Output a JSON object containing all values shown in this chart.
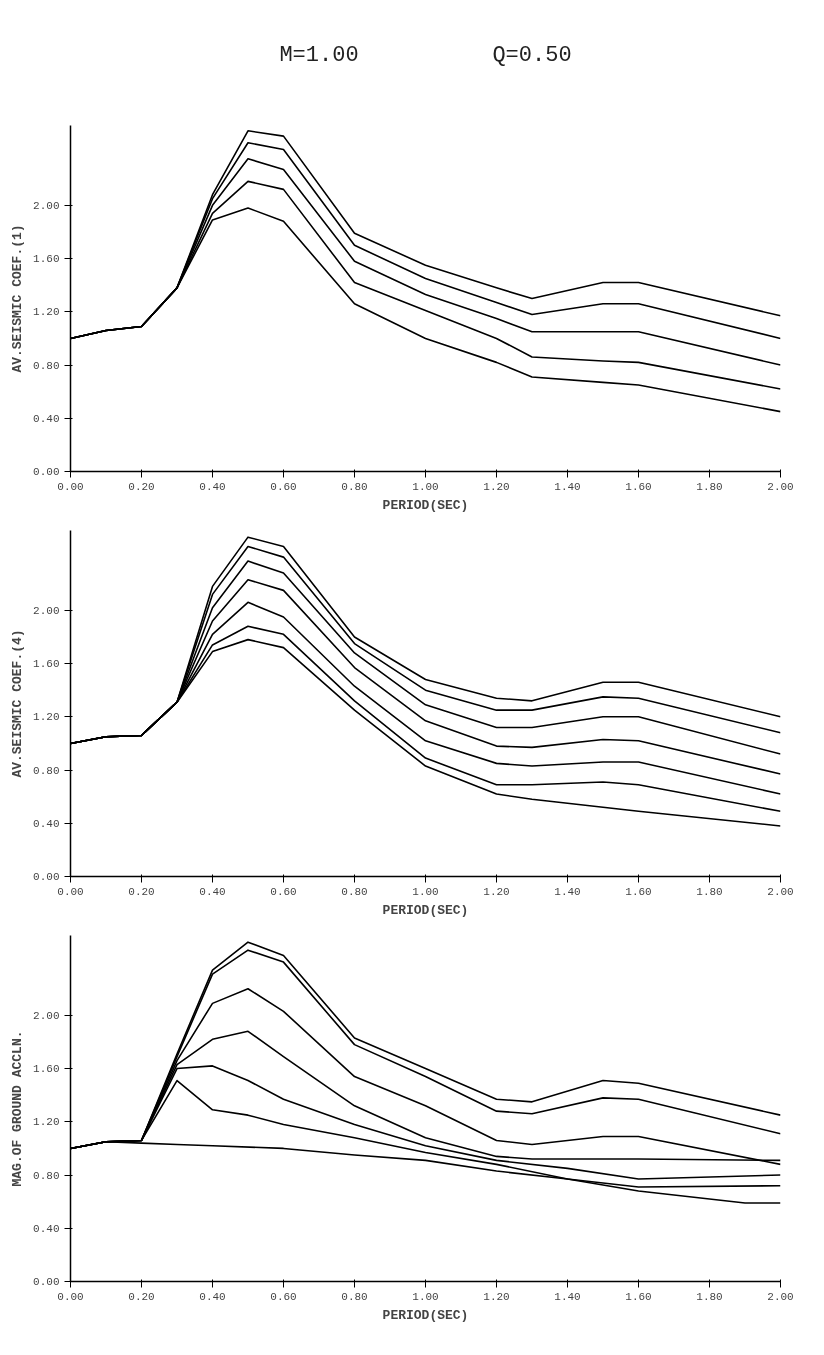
{
  "chart_data": [
    {
      "type": "other",
      "annotations": [
        "M=1.00",
        "Q=0.50"
      ]
    },
    {
      "type": "line",
      "xlabel": "PERIOD(SEC)",
      "ylabel": "AV.SEISMIC COEF.(1)",
      "xlim": [
        0,
        2.0
      ],
      "ylim": [
        0,
        2.6
      ],
      "xticks": [
        {
          "value": 0,
          "label": "0.00"
        },
        {
          "value": 0.2,
          "label": "0.20"
        },
        {
          "value": 0.4,
          "label": "0.40"
        },
        {
          "value": 0.6,
          "label": "0.60"
        },
        {
          "value": 0.8,
          "label": "0.80"
        },
        {
          "value": 1.0,
          "label": "1.00"
        },
        {
          "value": 1.2,
          "label": "1.20"
        },
        {
          "value": 1.4,
          "label": "1.40"
        },
        {
          "value": 1.6,
          "label": "1.60"
        },
        {
          "value": 1.8,
          "label": "1.80"
        },
        {
          "value": 2.0,
          "label": "2.00"
        }
      ],
      "yticks": [
        {
          "value": 0,
          "label": "0.00"
        },
        {
          "value": 0.4,
          "label": "0.40"
        },
        {
          "value": 0.8,
          "label": "0.80"
        },
        {
          "value": 1.2,
          "label": "1.20"
        },
        {
          "value": 1.6,
          "label": "1.60"
        },
        {
          "value": 2.0,
          "label": "2.00"
        }
      ],
      "grid": false,
      "line_style": "solid",
      "x": [
        0,
        0.1,
        0.2,
        0.3,
        0.4,
        0.5,
        0.6,
        0.8,
        1.0,
        1.2,
        1.3,
        1.5,
        1.6,
        2.0
      ],
      "series": [
        {
          "color": "#000000",
          "values": [
            1.0,
            1.06,
            1.09,
            1.38,
            2.08,
            2.56,
            2.52,
            1.79,
            1.55,
            1.38,
            1.3,
            1.42,
            1.42,
            1.17
          ]
        },
        {
          "color": "#000000",
          "values": [
            1.0,
            1.06,
            1.09,
            1.38,
            2.05,
            2.47,
            2.42,
            1.7,
            1.45,
            1.27,
            1.18,
            1.26,
            1.26,
            1.0
          ]
        },
        {
          "color": "#000000",
          "values": [
            1.0,
            1.06,
            1.09,
            1.38,
            2.0,
            2.35,
            2.27,
            1.58,
            1.33,
            1.15,
            1.05,
            1.05,
            1.05,
            0.8
          ]
        },
        {
          "color": "#000000",
          "values": [
            1.0,
            1.06,
            1.09,
            1.38,
            1.94,
            2.18,
            2.12,
            1.42,
            1.21,
            1.0,
            0.86,
            0.83,
            0.82,
            0.62
          ]
        },
        {
          "color": "#000000",
          "values": [
            1.0,
            1.06,
            1.09,
            1.38,
            1.89,
            1.98,
            1.88,
            1.26,
            1.0,
            0.82,
            0.71,
            0.67,
            0.65,
            0.45
          ]
        }
      ]
    },
    {
      "type": "line",
      "xlabel": "PERIOD(SEC)",
      "ylabel": "AV.SEISMIC COEF.(4)",
      "xlim": [
        0,
        2.0
      ],
      "ylim": [
        0,
        2.6
      ],
      "xticks": [
        {
          "value": 0,
          "label": "0.00"
        },
        {
          "value": 0.2,
          "label": "0.20"
        },
        {
          "value": 0.4,
          "label": "0.40"
        },
        {
          "value": 0.6,
          "label": "0.60"
        },
        {
          "value": 0.8,
          "label": "0.80"
        },
        {
          "value": 1.0,
          "label": "1.00"
        },
        {
          "value": 1.2,
          "label": "1.20"
        },
        {
          "value": 1.4,
          "label": "1.40"
        },
        {
          "value": 1.6,
          "label": "1.60"
        },
        {
          "value": 1.8,
          "label": "1.80"
        },
        {
          "value": 2.0,
          "label": "2.00"
        }
      ],
      "yticks": [
        {
          "value": 0,
          "label": "0.00"
        },
        {
          "value": 0.4,
          "label": "0.40"
        },
        {
          "value": 0.8,
          "label": "0.80"
        },
        {
          "value": 1.2,
          "label": "1.20"
        },
        {
          "value": 1.6,
          "label": "1.60"
        },
        {
          "value": 2.0,
          "label": "2.00"
        }
      ],
      "grid": false,
      "line_style": "solid",
      "x": [
        0,
        0.1,
        0.2,
        0.3,
        0.4,
        0.5,
        0.6,
        0.8,
        1.0,
        1.2,
        1.3,
        1.5,
        1.6,
        2.0
      ],
      "series": [
        {
          "color": "#000000",
          "values": [
            1.0,
            1.05,
            1.06,
            1.31,
            2.18,
            2.55,
            2.48,
            1.8,
            1.48,
            1.34,
            1.32,
            1.46,
            1.46,
            1.2
          ]
        },
        {
          "color": "#000000",
          "values": [
            1.0,
            1.05,
            1.06,
            1.31,
            2.12,
            2.48,
            2.4,
            1.75,
            1.4,
            1.25,
            1.25,
            1.35,
            1.34,
            1.08
          ]
        },
        {
          "color": "#000000",
          "values": [
            1.0,
            1.05,
            1.06,
            1.31,
            2.02,
            2.37,
            2.28,
            1.68,
            1.29,
            1.12,
            1.12,
            1.2,
            1.2,
            0.92
          ]
        },
        {
          "color": "#000000",
          "values": [
            1.0,
            1.05,
            1.06,
            1.31,
            1.92,
            2.23,
            2.15,
            1.57,
            1.17,
            0.98,
            0.97,
            1.03,
            1.02,
            0.77
          ]
        },
        {
          "color": "#000000",
          "values": [
            1.0,
            1.05,
            1.06,
            1.31,
            1.82,
            2.06,
            1.95,
            1.43,
            1.02,
            0.85,
            0.83,
            0.86,
            0.86,
            0.62
          ]
        },
        {
          "color": "#000000",
          "values": [
            1.0,
            1.05,
            1.06,
            1.31,
            1.74,
            1.88,
            1.82,
            1.32,
            0.89,
            0.69,
            0.69,
            0.71,
            0.69,
            0.49
          ]
        },
        {
          "color": "#000000",
          "values": [
            1.0,
            1.05,
            1.06,
            1.31,
            1.69,
            1.78,
            1.72,
            1.25,
            0.83,
            0.62,
            0.58,
            0.52,
            0.49,
            0.38
          ]
        }
      ]
    },
    {
      "type": "line",
      "xlabel": "PERIOD(SEC)",
      "ylabel": "MAG.OF GROUND ACCLN.",
      "xlim": [
        0,
        2.0
      ],
      "ylim": [
        0,
        2.6
      ],
      "xticks": [
        {
          "value": 0,
          "label": "0.00"
        },
        {
          "value": 0.2,
          "label": "0.20"
        },
        {
          "value": 0.4,
          "label": "0.40"
        },
        {
          "value": 0.6,
          "label": "0.60"
        },
        {
          "value": 0.8,
          "label": "0.80"
        },
        {
          "value": 1.0,
          "label": "1.00"
        },
        {
          "value": 1.2,
          "label": "1.20"
        },
        {
          "value": 1.4,
          "label": "1.40"
        },
        {
          "value": 1.6,
          "label": "1.60"
        },
        {
          "value": 1.8,
          "label": "1.80"
        },
        {
          "value": 2.0,
          "label": "2.00"
        }
      ],
      "yticks": [
        {
          "value": 0,
          "label": "0.00"
        },
        {
          "value": 0.4,
          "label": "0.40"
        },
        {
          "value": 0.8,
          "label": "0.80"
        },
        {
          "value": 1.2,
          "label": "1.20"
        },
        {
          "value": 1.6,
          "label": "1.60"
        },
        {
          "value": 2.0,
          "label": "2.00"
        }
      ],
      "grid": false,
      "line_style": "solid",
      "series": [
        {
          "color": "#000000",
          "x": [
            0,
            0.1,
            0.2,
            0.3,
            0.4,
            0.5,
            0.6,
            0.8,
            1.0,
            1.2,
            1.3,
            1.5,
            1.6,
            2.0
          ],
          "values": [
            1.0,
            1.05,
            1.06,
            1.71,
            2.34,
            2.55,
            2.45,
            1.83,
            1.6,
            1.37,
            1.35,
            1.51,
            1.49,
            1.25
          ]
        },
        {
          "color": "#000000",
          "x": [
            0,
            0.1,
            0.2,
            0.3,
            0.4,
            0.5,
            0.6,
            0.8,
            1.0,
            1.2,
            1.3,
            1.5,
            1.6,
            2.0
          ],
          "values": [
            1.0,
            1.05,
            1.06,
            1.69,
            2.31,
            2.49,
            2.4,
            1.78,
            1.54,
            1.28,
            1.26,
            1.38,
            1.37,
            1.11
          ]
        },
        {
          "color": "#000000",
          "x": [
            0,
            0.1,
            0.2,
            0.3,
            0.4,
            0.5,
            0.6,
            0.8,
            1.0,
            1.2,
            1.3,
            1.5,
            1.6,
            2.0
          ],
          "values": [
            1.0,
            1.05,
            1.06,
            1.66,
            2.09,
            2.2,
            2.03,
            1.54,
            1.32,
            1.06,
            1.03,
            1.09,
            1.09,
            0.88
          ]
        },
        {
          "color": "#000000",
          "x": [
            0,
            0.1,
            0.2,
            0.3,
            0.4,
            0.5,
            0.6,
            0.8,
            1.0,
            1.2,
            1.3,
            1.5,
            1.6,
            2.0
          ],
          "values": [
            1.0,
            1.05,
            1.06,
            1.63,
            1.82,
            1.88,
            1.69,
            1.32,
            1.08,
            0.94,
            0.92,
            0.92,
            0.92,
            0.91
          ]
        },
        {
          "color": "#000000",
          "x": [
            0,
            0.1,
            0.2,
            0.3,
            0.4,
            0.5,
            0.6,
            0.8,
            1.0,
            1.2,
            1.4,
            1.6,
            2.0
          ],
          "values": [
            1.0,
            1.05,
            1.06,
            1.6,
            1.62,
            1.51,
            1.37,
            1.18,
            1.02,
            0.91,
            0.85,
            0.77,
            0.8
          ]
        },
        {
          "color": "#000000",
          "x": [
            0,
            0.1,
            0.2,
            0.3,
            0.4,
            0.5,
            0.6,
            0.8,
            1.0,
            1.2,
            1.4,
            1.6,
            2.0
          ],
          "values": [
            1.0,
            1.05,
            1.06,
            1.51,
            1.29,
            1.25,
            1.18,
            1.08,
            0.97,
            0.88,
            0.77,
            0.71,
            0.72
          ]
        },
        {
          "color": "#000000",
          "x": [
            0,
            0.1,
            0.2,
            0.3,
            0.4,
            0.6,
            0.8,
            1.0,
            1.2,
            1.4,
            1.6,
            1.9,
            2.0
          ],
          "values": [
            1.0,
            1.05,
            1.04,
            1.03,
            1.02,
            1.0,
            0.95,
            0.91,
            0.83,
            0.77,
            0.68,
            0.59,
            0.59
          ]
        }
      ]
    }
  ]
}
